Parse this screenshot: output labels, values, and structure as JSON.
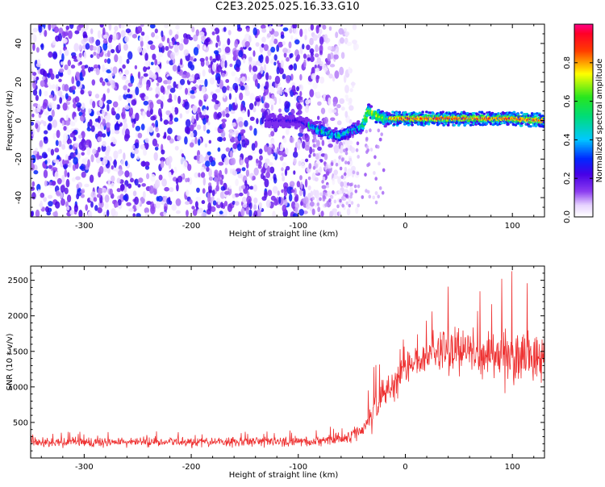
{
  "chart_data": [
    {
      "type": "heatmap",
      "title": "C2E3.2025.025.16.33.G10",
      "xlabel": "Height of straight line (km)",
      "ylabel": "Frequency (Hz)",
      "xlim": [
        -350,
        130
      ],
      "ylim": [
        -50,
        50
      ],
      "xticks": [
        "-300",
        "-200",
        "-100",
        "0",
        "100"
      ],
      "yticks": [
        "-40",
        "-20",
        "0",
        "20",
        "40"
      ],
      "colorbar": {
        "label": "Normalized spectral amplitude",
        "range": [
          0,
          1
        ],
        "ticks": [
          "0.0",
          "0.2",
          "0.4",
          "0.6",
          "0.8"
        ],
        "colormap": "rainbow (white-violet-blue-cyan-green-yellow-red-magenta)"
      },
      "signal_track": [
        {
          "x": -100,
          "y": 0
        },
        {
          "x": -80,
          "y": -5
        },
        {
          "x": -70,
          "y": -7
        },
        {
          "x": -60,
          "y": -8
        },
        {
          "x": -50,
          "y": -5
        },
        {
          "x": -40,
          "y": -3
        },
        {
          "x": -35,
          "y": 5
        },
        {
          "x": -20,
          "y": 1
        },
        {
          "x": 0,
          "y": 1
        },
        {
          "x": 50,
          "y": 1
        },
        {
          "x": 100,
          "y": 1
        },
        {
          "x": 130,
          "y": 0
        }
      ],
      "noise_region_x": [
        -350,
        -55
      ],
      "grid": false
    },
    {
      "type": "line",
      "xlabel": "Height of straight line (km)",
      "ylabel": "SNR (10 * v/v)",
      "xlim": [
        -350,
        130
      ],
      "ylim": [
        0,
        2700
      ],
      "xticks": [
        "-300",
        "-200",
        "-100",
        "0",
        "100"
      ],
      "yticks": [
        "500",
        "1000",
        "1500",
        "2000",
        "2500"
      ],
      "series_color": "#ee3333",
      "envelope": {
        "x": [
          -350,
          -100,
          -60,
          -40,
          -30,
          -20,
          -10,
          0,
          20,
          40,
          60,
          80,
          100,
          130
        ],
        "low": [
          80,
          80,
          90,
          150,
          300,
          450,
          500,
          700,
          1000,
          1050,
          1050,
          1000,
          950,
          900
        ],
        "high": [
          350,
          380,
          450,
          700,
          1200,
          1600,
          1800,
          1600,
          2100,
          2600,
          2300,
          2200,
          2700,
          2200
        ],
        "mean": [
          220,
          230,
          260,
          400,
          650,
          900,
          1100,
          1250,
          1450,
          1550,
          1500,
          1450,
          1450,
          1400
        ]
      },
      "grid": false
    }
  ]
}
